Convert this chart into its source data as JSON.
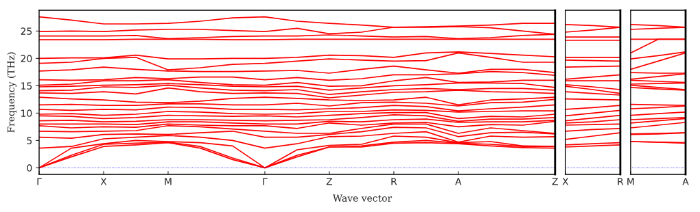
{
  "chart_data": [
    {
      "type": "line",
      "ylabel": "Frequency (THz)",
      "xlabel": "Wave vector",
      "ylim": [
        -1.2,
        28.8
      ],
      "yticks": [
        0,
        5,
        10,
        15,
        20,
        25
      ],
      "categories": [
        "Γ",
        null,
        "X",
        null,
        "M",
        null,
        null,
        "Γ",
        null,
        "Z",
        null,
        "R",
        null,
        "A",
        null,
        null,
        "Z"
      ],
      "ref_lines": [
        {
          "axis": "y",
          "value": 0,
          "color": "#0000ff",
          "line_style": "dotted"
        }
      ],
      "series": [
        {
          "color": "#ff0000",
          "values": [
            0,
            2.0,
            3.9,
            4.2,
            4.6,
            3.6,
            1.5,
            0,
            2.0,
            3.8,
            3.8,
            4.5,
            4.6,
            4.4,
            4.0,
            3.7,
            3.6
          ]
        },
        {
          "color": "#ff0000",
          "values": [
            0,
            2.3,
            4.3,
            4.5,
            4.7,
            3.9,
            1.8,
            0,
            2.3,
            3.8,
            4.0,
            4.7,
            5.0,
            4.5,
            4.3,
            3.9,
            3.9
          ]
        },
        {
          "color": "#ff0000",
          "values": [
            0,
            3.6,
            4.4,
            5.0,
            4.8,
            4.6,
            4.0,
            0,
            3.3,
            4.1,
            4.3,
            5.8,
            5.6,
            4.6,
            4.8,
            4.0,
            3.9
          ]
        },
        {
          "color": "#ff0000",
          "values": [
            3.6,
            3.9,
            5.3,
            5.6,
            5.9,
            5.6,
            5.0,
            3.6,
            4.4,
            5.7,
            5.8,
            6.3,
            6.6,
            4.7,
            5.8,
            5.6,
            5.7
          ]
        },
        {
          "color": "#ff0000",
          "values": [
            5.6,
            5.4,
            6.1,
            6.2,
            6.1,
            6.4,
            6.7,
            5.6,
            5.6,
            6.1,
            6.6,
            7.4,
            7.3,
            5.7,
            6.4,
            6.5,
            6.2
          ]
        },
        {
          "color": "#ff0000",
          "values": [
            6.7,
            6.6,
            6.7,
            6.8,
            7.7,
            7.5,
            7.1,
            6.7,
            6.3,
            6.3,
            7.2,
            8.0,
            8.0,
            6.3,
            7.3,
            6.8,
            6.3
          ]
        },
        {
          "color": "#ff0000",
          "values": [
            7.7,
            7.3,
            7.5,
            7.4,
            8.0,
            7.8,
            7.7,
            7.7,
            7.2,
            8.2,
            7.8,
            8.2,
            8.3,
            7.5,
            7.9,
            7.8,
            8.5
          ]
        },
        {
          "color": "#ff0000",
          "values": [
            8.0,
            8.0,
            8.0,
            7.9,
            8.4,
            8.4,
            8.2,
            8.0,
            8.0,
            8.5,
            8.4,
            8.8,
            8.9,
            8.3,
            8.4,
            8.4,
            8.7
          ]
        },
        {
          "color": "#ff0000",
          "values": [
            8.6,
            8.7,
            8.4,
            8.5,
            8.8,
            8.8,
            8.7,
            8.6,
            8.7,
            8.8,
            9.2,
            9.7,
            9.5,
            8.5,
            8.9,
            8.9,
            9.2
          ]
        },
        {
          "color": "#ff0000",
          "values": [
            9.5,
            9.4,
            9.0,
            9.2,
            9.6,
            9.5,
            9.4,
            9.5,
            9.3,
            9.6,
            9.9,
            10.1,
            10.1,
            9.0,
            9.4,
            9.3,
            9.8
          ]
        },
        {
          "color": "#ff0000",
          "values": [
            9.8,
            9.9,
            9.6,
            9.8,
            10.3,
            10.2,
            9.9,
            9.8,
            9.9,
            10.3,
            10.3,
            10.6,
            10.5,
            10.2,
            10.3,
            10.4,
            10.4
          ]
        },
        {
          "color": "#ff0000",
          "values": [
            10.7,
            10.5,
            10.7,
            10.6,
            11.1,
            11.0,
            10.7,
            10.7,
            10.6,
            10.8,
            11.0,
            11.4,
            11.2,
            10.4,
            10.8,
            11.1,
            11.5
          ]
        },
        {
          "color": "#ff0000",
          "values": [
            11.5,
            11.6,
            11.4,
            11.4,
            11.7,
            11.7,
            11.5,
            11.5,
            11.8,
            11.3,
            11.9,
            12.0,
            11.8,
            11.3,
            11.9,
            12.0,
            12.5
          ]
        },
        {
          "color": "#ff0000",
          "values": [
            12.9,
            12.6,
            12.4,
            12.0,
            11.9,
            12.2,
            12.7,
            12.9,
            12.7,
            12.4,
            12.3,
            12.4,
            12.9,
            11.5,
            12.4,
            12.6,
            12.9
          ]
        },
        {
          "color": "#ff0000",
          "values": [
            13.7,
            13.6,
            13.9,
            13.5,
            14.6,
            13.9,
            13.6,
            13.7,
            13.6,
            12.8,
            13.3,
            13.8,
            13.9,
            14.2,
            13.9,
            13.8,
            13.6
          ]
        },
        {
          "color": "#ff0000",
          "values": [
            14.1,
            14.2,
            14.8,
            14.7,
            15.1,
            14.6,
            14.2,
            14.1,
            14.3,
            13.4,
            13.9,
            14.3,
            14.5,
            14.3,
            14.5,
            14.5,
            14.2
          ]
        },
        {
          "color": "#ff0000",
          "values": [
            14.8,
            14.9,
            15.1,
            15.2,
            15.4,
            15.2,
            14.9,
            14.8,
            14.9,
            14.2,
            14.6,
            15.0,
            15.2,
            15.5,
            15.5,
            15.4,
            14.7
          ]
        },
        {
          "color": "#ff0000",
          "values": [
            15.1,
            15.3,
            15.9,
            15.9,
            16.1,
            15.6,
            15.2,
            15.1,
            15.6,
            14.9,
            15.0,
            15.9,
            16.5,
            15.6,
            15.7,
            16.0,
            16.0
          ]
        },
        {
          "color": "#ff0000",
          "values": [
            16.1,
            16.0,
            16.1,
            16.5,
            16.3,
            16.6,
            16.6,
            16.1,
            16.5,
            16.0,
            16.3,
            17.0,
            17.0,
            17.2,
            17.6,
            17.4,
            16.9
          ]
        },
        {
          "color": "#ff0000",
          "values": [
            17.7,
            17.9,
            18.4,
            18.0,
            17.7,
            17.6,
            17.6,
            17.7,
            17.8,
            17.3,
            18.0,
            18.6,
            17.9,
            17.3,
            18.0,
            18.0,
            17.4
          ]
        },
        {
          "color": "#ff0000",
          "values": [
            19.1,
            19.3,
            20.0,
            20.2,
            17.9,
            18.3,
            18.9,
            19.1,
            19.5,
            19.9,
            19.7,
            19.5,
            19.6,
            21.0,
            20.2,
            19.3,
            19.3
          ]
        },
        {
          "color": "#ff0000",
          "values": [
            20.0,
            20.1,
            20.1,
            20.6,
            19.9,
            19.9,
            20.0,
            20.0,
            20.2,
            20.6,
            20.5,
            20.2,
            21.0,
            21.2,
            20.9,
            20.6,
            20.3
          ]
        },
        {
          "color": "#ff0000",
          "values": [
            23.4,
            23.4,
            23.4,
            23.5,
            23.5,
            23.5,
            23.4,
            23.4,
            23.5,
            23.5,
            23.5,
            23.5,
            23.5,
            23.5,
            23.5,
            23.5,
            23.5
          ]
        },
        {
          "color": "#ff0000",
          "values": [
            24.1,
            24.1,
            24.1,
            24.2,
            23.6,
            23.8,
            24.0,
            24.1,
            24.1,
            24.3,
            24.1,
            23.9,
            24.0,
            23.6,
            23.8,
            24.2,
            24.4
          ]
        },
        {
          "color": "#ff0000",
          "values": [
            24.9,
            25.0,
            24.9,
            25.2,
            25.3,
            25.3,
            25.1,
            24.9,
            25.5,
            24.5,
            24.8,
            25.7,
            25.7,
            25.8,
            25.6,
            25.0,
            24.4
          ]
        },
        {
          "color": "#ff0000",
          "values": [
            27.6,
            27.0,
            26.3,
            26.3,
            26.4,
            26.8,
            27.4,
            27.6,
            26.8,
            26.4,
            26.1,
            25.7,
            25.8,
            25.9,
            26.1,
            26.4,
            26.4
          ]
        }
      ]
    },
    {
      "type": "line",
      "tick_labels": "x",
      "ylim": [
        -1.2,
        28.8
      ],
      "categories": [
        "X",
        null,
        "R"
      ],
      "ref_lines": [
        {
          "axis": "y",
          "value": 0,
          "color": "#0000ff",
          "line_style": "dotted"
        }
      ],
      "series": [
        {
          "color": "#ff0000",
          "values": [
            3.8,
            4.0,
            4.2
          ]
        },
        {
          "color": "#ff0000",
          "values": [
            4.2,
            4.4,
            4.6
          ]
        },
        {
          "color": "#ff0000",
          "values": [
            5.2,
            5.8,
            6.4
          ]
        },
        {
          "color": "#ff0000",
          "values": [
            6.7,
            7.0,
            7.2
          ]
        },
        {
          "color": "#ff0000",
          "values": [
            7.8,
            7.9,
            8.0
          ]
        },
        {
          "color": "#ff0000",
          "values": [
            8.2,
            8.4,
            8.8
          ]
        },
        {
          "color": "#ff0000",
          "values": [
            8.6,
            9.1,
            9.6
          ]
        },
        {
          "color": "#ff0000",
          "values": [
            9.5,
            10.0,
            10.5
          ]
        },
        {
          "color": "#ff0000",
          "values": [
            10.7,
            11.0,
            11.4
          ]
        },
        {
          "color": "#ff0000",
          "values": [
            12.6,
            12.5,
            12.4
          ]
        },
        {
          "color": "#ff0000",
          "values": [
            13.9,
            13.6,
            13.3
          ]
        },
        {
          "color": "#ff0000",
          "values": [
            14.9,
            14.3,
            13.6
          ]
        },
        {
          "color": "#ff0000",
          "values": [
            15.2,
            14.8,
            14.3
          ]
        },
        {
          "color": "#ff0000",
          "values": [
            15.9,
            15.9,
            15.9
          ]
        },
        {
          "color": "#ff0000",
          "values": [
            16.2,
            16.6,
            17.0
          ]
        },
        {
          "color": "#ff0000",
          "values": [
            18.4,
            18.5,
            18.6
          ]
        },
        {
          "color": "#ff0000",
          "values": [
            19.7,
            19.6,
            19.5
          ]
        },
        {
          "color": "#ff0000",
          "values": [
            20.2,
            20.2,
            20.2
          ]
        },
        {
          "color": "#ff0000",
          "values": [
            23.3,
            23.3,
            23.3
          ]
        },
        {
          "color": "#ff0000",
          "values": [
            23.9,
            23.9,
            23.9
          ]
        },
        {
          "color": "#ff0000",
          "values": [
            24.8,
            25.2,
            25.7
          ]
        },
        {
          "color": "#ff0000",
          "values": [
            26.2,
            26.0,
            25.7
          ]
        }
      ]
    },
    {
      "type": "line",
      "tick_labels": "x",
      "ylim": [
        -1.2,
        28.8
      ],
      "categories": [
        "M",
        null,
        "A"
      ],
      "ref_lines": [
        {
          "axis": "y",
          "value": 0,
          "color": "#0000ff",
          "line_style": "dotted"
        }
      ],
      "series": [
        {
          "color": "#ff0000",
          "values": [
            4.8,
            4.7,
            4.5
          ]
        },
        {
          "color": "#ff0000",
          "values": [
            4.8,
            4.7,
            4.6
          ]
        },
        {
          "color": "#ff0000",
          "values": [
            6.1,
            6.2,
            6.4
          ]
        },
        {
          "color": "#ff0000",
          "values": [
            6.2,
            6.3,
            6.4
          ]
        },
        {
          "color": "#ff0000",
          "values": [
            7.3,
            7.8,
            8.3
          ]
        },
        {
          "color": "#ff0000",
          "values": [
            8.2,
            8.6,
            9.0
          ]
        },
        {
          "color": "#ff0000",
          "values": [
            8.8,
            9.0,
            9.2
          ]
        },
        {
          "color": "#ff0000",
          "values": [
            9.6,
            9.9,
            10.2
          ]
        },
        {
          "color": "#ff0000",
          "values": [
            10.8,
            11.0,
            11.3
          ]
        },
        {
          "color": "#ff0000",
          "values": [
            11.6,
            11.5,
            11.4
          ]
        },
        {
          "color": "#ff0000",
          "values": [
            14.7,
            14.4,
            14.2
          ]
        },
        {
          "color": "#ff0000",
          "values": [
            15.1,
            14.7,
            14.3
          ]
        },
        {
          "color": "#ff0000",
          "values": [
            15.3,
            15.4,
            15.5
          ]
        },
        {
          "color": "#ff0000",
          "values": [
            16.0,
            15.8,
            15.6
          ]
        },
        {
          "color": "#ff0000",
          "values": [
            16.2,
            16.7,
            17.2
          ]
        },
        {
          "color": "#ff0000",
          "values": [
            17.4,
            17.3,
            17.3
          ]
        },
        {
          "color": "#ff0000",
          "values": [
            18.0,
            19.5,
            21.0
          ]
        },
        {
          "color": "#ff0000",
          "values": [
            19.9,
            20.5,
            21.2
          ]
        },
        {
          "color": "#ff0000",
          "values": [
            21.0,
            23.5,
            23.5
          ]
        },
        {
          "color": "#ff0000",
          "values": [
            23.5,
            23.5,
            23.5
          ]
        },
        {
          "color": "#ff0000",
          "values": [
            25.3,
            25.5,
            25.7
          ]
        },
        {
          "color": "#ff0000",
          "values": [
            26.2,
            26.0,
            25.7
          ]
        }
      ]
    }
  ]
}
